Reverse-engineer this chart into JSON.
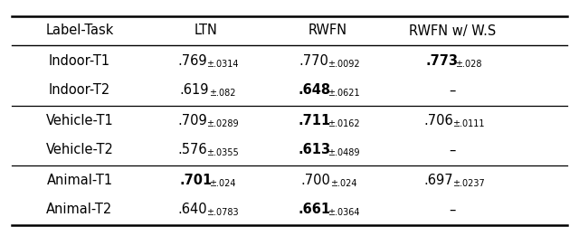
{
  "col_headers": [
    "Label-Task",
    "LTN",
    "RWFN",
    "RWFN w/ W.S"
  ],
  "rows": [
    {
      "label": "Indoor-T1",
      "ltn": {
        "val": ".769",
        "pm": "±.0314",
        "bold": false
      },
      "rwfn": {
        "val": ".770",
        "pm": "±.0092",
        "bold": false
      },
      "rwfn_ws": {
        "val": ".773",
        "pm": "±.028",
        "bold": true
      }
    },
    {
      "label": "Indoor-T2",
      "ltn": {
        "val": ".619",
        "pm": "±.082",
        "bold": false
      },
      "rwfn": {
        "val": ".648",
        "pm": "±.0621",
        "bold": true
      },
      "rwfn_ws": {
        "val": "–",
        "pm": "",
        "bold": false
      }
    },
    {
      "label": "Vehicle-T1",
      "ltn": {
        "val": ".709",
        "pm": "±.0289",
        "bold": false
      },
      "rwfn": {
        "val": ".711",
        "pm": "±.0162",
        "bold": true
      },
      "rwfn_ws": {
        "val": ".706",
        "pm": "±.0111",
        "bold": false
      }
    },
    {
      "label": "Vehicle-T2",
      "ltn": {
        "val": ".576",
        "pm": "±.0355",
        "bold": false
      },
      "rwfn": {
        "val": ".613",
        "pm": "±.0489",
        "bold": true
      },
      "rwfn_ws": {
        "val": "–",
        "pm": "",
        "bold": false
      }
    },
    {
      "label": "Animal-T1",
      "ltn": {
        "val": ".701",
        "pm": "±.024",
        "bold": true
      },
      "rwfn": {
        "val": ".700",
        "pm": "±.024",
        "bold": false
      },
      "rwfn_ws": {
        "val": ".697",
        "pm": "±.0237",
        "bold": false
      }
    },
    {
      "label": "Animal-T2",
      "ltn": {
        "val": ".640",
        "pm": "±.0783",
        "bold": false
      },
      "rwfn": {
        "val": ".661",
        "pm": "±.0364",
        "bold": true
      },
      "rwfn_ws": {
        "val": "–",
        "pm": "",
        "bold": false
      }
    }
  ],
  "group_separators_after": [
    1,
    3
  ],
  "background_color": "#ffffff",
  "text_color": "#000000",
  "main_font_size": 10.5,
  "sub_font_size": 7.0,
  "header_font_size": 10.5
}
